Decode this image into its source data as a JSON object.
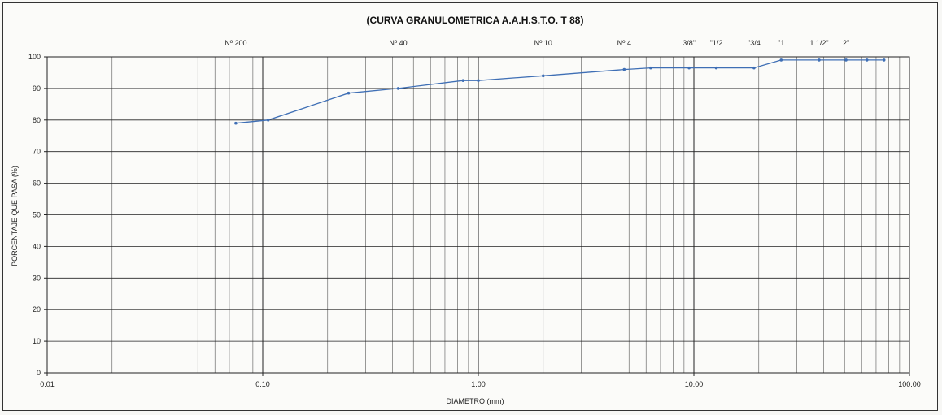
{
  "chart_data": {
    "type": "line",
    "title": "(CURVA GRANULOMETRICA A.A.H.S.T.O. T 88)",
    "xlabel": "DIAMETRO (mm)",
    "ylabel": "PORCENTAJE QUE PASA (%)",
    "x_scale": "log",
    "xlim": [
      0.01,
      100
    ],
    "ylim": [
      0,
      100
    ],
    "x_ticks": [
      0.01,
      0.1,
      1,
      10,
      100
    ],
    "x_tick_labels": [
      "0.01",
      "0.10",
      "1.00",
      "10.00",
      "100.00"
    ],
    "y_ticks": [
      0,
      10,
      20,
      30,
      40,
      50,
      60,
      70,
      80,
      90,
      100
    ],
    "y_tick_labels": [
      "0",
      "10",
      "20",
      "30",
      "40",
      "50",
      "60",
      "70",
      "80",
      "90",
      "100"
    ],
    "grid": true,
    "sieve_labels": [
      {
        "label": "Nº 200",
        "x": 0.075
      },
      {
        "label": "Nº 40",
        "x": 0.425
      },
      {
        "label": "Nº 10",
        "x": 2.0
      },
      {
        "label": "Nº 4",
        "x": 4.75
      },
      {
        "label": "3/8\"",
        "x": 9.5
      },
      {
        "label": "\"1/2",
        "x": 12.7
      },
      {
        "label": "\"3/4",
        "x": 19.0
      },
      {
        "label": "\"1",
        "x": 25.4
      },
      {
        "label": "1 1/2\"",
        "x": 38.1
      },
      {
        "label": "2\"",
        "x": 50.8
      }
    ],
    "series": [
      {
        "color": "#3f6fb5",
        "x": [
          0.075,
          0.106,
          0.25,
          0.425,
          0.85,
          1.0,
          2.0,
          4.75,
          6.3,
          9.5,
          12.7,
          19.0,
          25.4,
          38.1,
          50.8,
          63.5,
          76.2
        ],
        "y": [
          79,
          80,
          88.5,
          90,
          92.5,
          92.5,
          94,
          96,
          96.5,
          96.5,
          96.5,
          96.5,
          99,
          99,
          99,
          99,
          99
        ]
      }
    ]
  }
}
